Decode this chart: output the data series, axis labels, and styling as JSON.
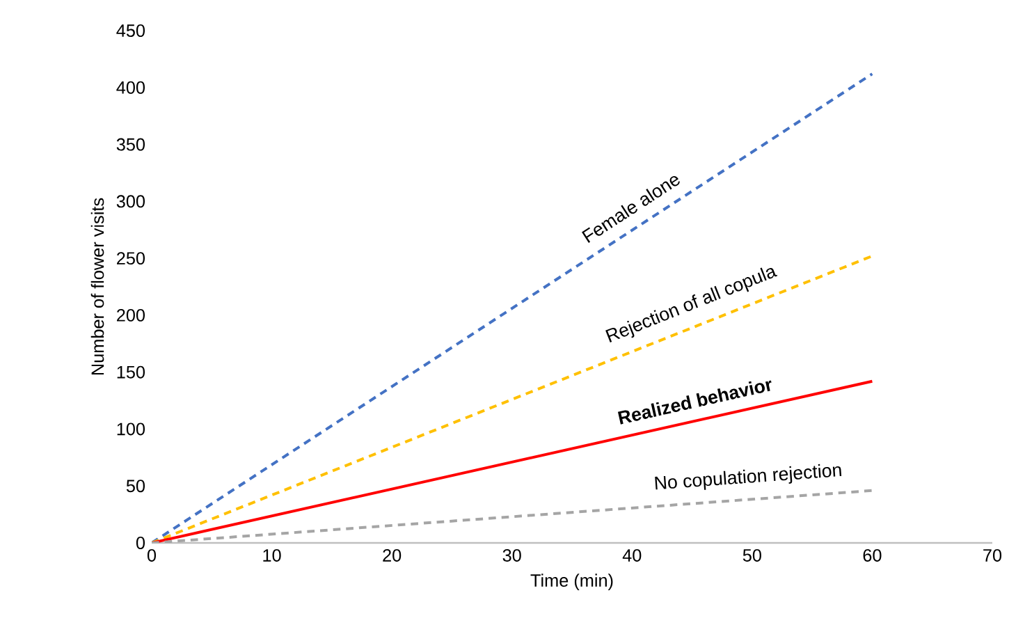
{
  "chart_data": {
    "type": "line",
    "xlabel": "Time (min)",
    "ylabel": "Number of flower visits",
    "x": [
      0,
      60
    ],
    "xlim": [
      0,
      70
    ],
    "ylim": [
      0,
      450
    ],
    "xticks": [
      0,
      10,
      20,
      30,
      40,
      50,
      60,
      70
    ],
    "yticks": [
      0,
      50,
      100,
      150,
      200,
      250,
      300,
      350,
      400,
      450
    ],
    "grid": false,
    "marker": "none",
    "series": [
      {
        "name": "Female alone",
        "color": "#4472c4",
        "line_style": "dashed",
        "values": [
          0,
          412
        ]
      },
      {
        "name": "Rejection of all copula",
        "color": "#ffc000",
        "line_style": "dashed",
        "values": [
          0,
          252
        ]
      },
      {
        "name": "Realized behavior",
        "color": "#ff0000",
        "line_style": "solid",
        "values": [
          0,
          142
        ]
      },
      {
        "name": "No copulation rejection",
        "color": "#a5a5a5",
        "line_style": "dashed",
        "values": [
          0,
          46
        ]
      }
    ]
  }
}
